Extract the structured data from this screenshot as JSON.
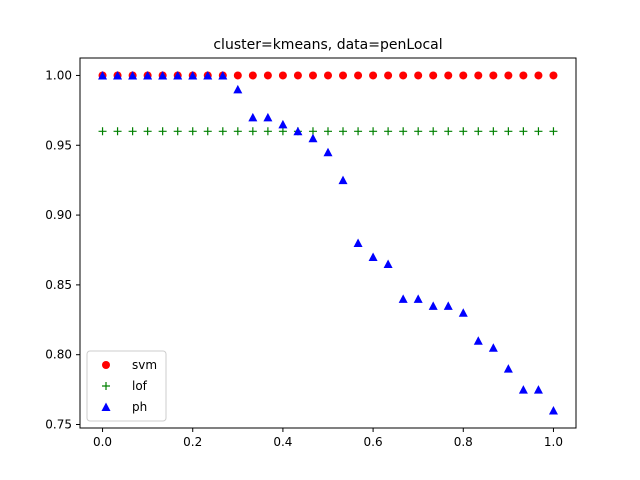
{
  "chart_data": {
    "type": "scatter",
    "title": "cluster=kmeans, data=penLocal",
    "xlabel": "",
    "ylabel": "",
    "xlim": [
      -0.05,
      1.05
    ],
    "ylim": [
      0.7475,
      1.0125
    ],
    "x_ticks": [
      0.0,
      0.2,
      0.4,
      0.6,
      0.8,
      1.0
    ],
    "x_tick_labels": [
      "0.0",
      "0.2",
      "0.4",
      "0.6",
      "0.8",
      "1.0"
    ],
    "y_ticks": [
      0.75,
      0.8,
      0.85,
      0.9,
      0.95,
      1.0
    ],
    "y_tick_labels": [
      "0.75",
      "0.80",
      "0.85",
      "0.90",
      "0.95",
      "1.00"
    ],
    "grid": false,
    "legend_position": "lower-left",
    "x": [
      0.0,
      0.0333,
      0.0667,
      0.1,
      0.1333,
      0.1667,
      0.2,
      0.2333,
      0.2667,
      0.3,
      0.3333,
      0.3667,
      0.4,
      0.4333,
      0.4667,
      0.5,
      0.5333,
      0.5667,
      0.6,
      0.6333,
      0.6667,
      0.7,
      0.7333,
      0.7667,
      0.8,
      0.8333,
      0.8667,
      0.9,
      0.9333,
      0.9667,
      1.0
    ],
    "series": [
      {
        "name": "svm",
        "marker": "circle",
        "color": "#ff0000",
        "values": [
          1.0,
          1.0,
          1.0,
          1.0,
          1.0,
          1.0,
          1.0,
          1.0,
          1.0,
          1.0,
          1.0,
          1.0,
          1.0,
          1.0,
          1.0,
          1.0,
          1.0,
          1.0,
          1.0,
          1.0,
          1.0,
          1.0,
          1.0,
          1.0,
          1.0,
          1.0,
          1.0,
          1.0,
          1.0,
          1.0,
          1.0
        ]
      },
      {
        "name": "lof",
        "marker": "plus",
        "color": "#008000",
        "values": [
          0.96,
          0.96,
          0.96,
          0.96,
          0.96,
          0.96,
          0.96,
          0.96,
          0.96,
          0.96,
          0.96,
          0.96,
          0.96,
          0.96,
          0.96,
          0.96,
          0.96,
          0.96,
          0.96,
          0.96,
          0.96,
          0.96,
          0.96,
          0.96,
          0.96,
          0.96,
          0.96,
          0.96,
          0.96,
          0.96,
          0.96
        ]
      },
      {
        "name": "ph",
        "marker": "triangle",
        "color": "#0000ff",
        "values": [
          1.0,
          1.0,
          1.0,
          1.0,
          1.0,
          1.0,
          1.0,
          1.0,
          1.0,
          0.99,
          0.97,
          0.97,
          0.965,
          0.96,
          0.955,
          0.945,
          0.925,
          0.88,
          0.87,
          0.865,
          0.84,
          0.84,
          0.835,
          0.835,
          0.83,
          0.81,
          0.805,
          0.79,
          0.775,
          0.775,
          0.76
        ]
      }
    ]
  }
}
